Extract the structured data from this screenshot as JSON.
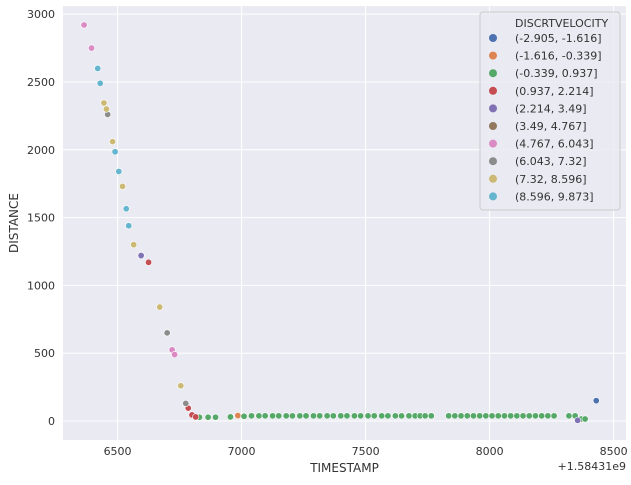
{
  "chart_data": {
    "type": "scatter",
    "xlabel": "TIMESTAMP",
    "ylabel": "DISTANCE",
    "x_offset_label": "+1.58431e9",
    "xlim": [
      6280,
      8550
    ],
    "ylim": [
      -140,
      3060
    ],
    "x_ticks": [
      6500,
      7000,
      7500,
      8000,
      8500
    ],
    "x_tick_labels": [
      "6500",
      "7000",
      "7500",
      "8000",
      "8500"
    ],
    "y_ticks": [
      0,
      500,
      1000,
      1500,
      2000,
      2500,
      3000
    ],
    "y_tick_labels": [
      "0",
      "500",
      "1000",
      "1500",
      "2000",
      "2500",
      "3000"
    ],
    "grid": true,
    "legend": {
      "title": "DISCRTVELOCITY",
      "placement": "top-right"
    },
    "series": [
      {
        "name": "(-2.905, -1.616]",
        "color": "#4c72b0",
        "points": [
          [
            8430,
            150
          ]
        ]
      },
      {
        "name": "(-1.616, -0.339]",
        "color": "#dd8452",
        "points": [
          [
            6985,
            40
          ]
        ]
      },
      {
        "name": "(-0.339, 0.937]",
        "color": "#55a868",
        "points": [
          [
            6830,
            28
          ],
          [
            6865,
            28
          ],
          [
            6895,
            28
          ],
          [
            6955,
            30
          ],
          [
            7010,
            35
          ],
          [
            7040,
            38
          ],
          [
            7070,
            38
          ],
          [
            7095,
            38
          ],
          [
            7125,
            38
          ],
          [
            7150,
            38
          ],
          [
            7180,
            38
          ],
          [
            7205,
            38
          ],
          [
            7235,
            38
          ],
          [
            7260,
            38
          ],
          [
            7290,
            38
          ],
          [
            7315,
            38
          ],
          [
            7345,
            38
          ],
          [
            7370,
            38
          ],
          [
            7400,
            38
          ],
          [
            7425,
            38
          ],
          [
            7455,
            38
          ],
          [
            7480,
            38
          ],
          [
            7510,
            38
          ],
          [
            7535,
            38
          ],
          [
            7565,
            38
          ],
          [
            7590,
            38
          ],
          [
            7620,
            38
          ],
          [
            7645,
            38
          ],
          [
            7675,
            38
          ],
          [
            7700,
            38
          ],
          [
            7720,
            38
          ],
          [
            7740,
            38
          ],
          [
            7765,
            38
          ],
          [
            7835,
            38
          ],
          [
            7860,
            38
          ],
          [
            7885,
            38
          ],
          [
            7910,
            38
          ],
          [
            7935,
            38
          ],
          [
            7960,
            38
          ],
          [
            7985,
            38
          ],
          [
            8010,
            38
          ],
          [
            8035,
            38
          ],
          [
            8060,
            38
          ],
          [
            8085,
            38
          ],
          [
            8110,
            38
          ],
          [
            8135,
            38
          ],
          [
            8160,
            38
          ],
          [
            8185,
            38
          ],
          [
            8210,
            38
          ],
          [
            8235,
            38
          ],
          [
            8260,
            38
          ],
          [
            8320,
            38
          ],
          [
            8345,
            38
          ],
          [
            8370,
            15
          ],
          [
            8385,
            15
          ]
        ]
      },
      {
        "name": "(0.937, 2.214]",
        "color": "#c44e52",
        "points": [
          [
            6625,
            1170
          ],
          [
            6785,
            95
          ],
          [
            6800,
            45
          ],
          [
            6815,
            30
          ]
        ]
      },
      {
        "name": "(2.214, 3.49]",
        "color": "#8172b3",
        "points": [
          [
            6595,
            1220
          ],
          [
            8355,
            5
          ]
        ]
      },
      {
        "name": "(3.49, 4.767]",
        "color": "#937860",
        "points": []
      },
      {
        "name": "(4.767, 6.043]",
        "color": "#da8bc3",
        "points": [
          [
            6365,
            2920
          ],
          [
            6395,
            2750
          ],
          [
            6720,
            525
          ],
          [
            6730,
            490
          ]
        ]
      },
      {
        "name": "(6.043, 7.32]",
        "color": "#8c8c8c",
        "points": [
          [
            6460,
            2260
          ],
          [
            6700,
            650
          ],
          [
            6775,
            130
          ]
        ]
      },
      {
        "name": "(7.32, 8.596]",
        "color": "#ccb974",
        "points": [
          [
            6445,
            2345
          ],
          [
            6455,
            2300
          ],
          [
            6480,
            2060
          ],
          [
            6520,
            1730
          ],
          [
            6565,
            1300
          ],
          [
            6670,
            840
          ],
          [
            6755,
            260
          ]
        ]
      },
      {
        "name": "(8.596, 9.873]",
        "color": "#64b5cd",
        "points": [
          [
            6420,
            2600
          ],
          [
            6430,
            2490
          ],
          [
            6490,
            1985
          ],
          [
            6505,
            1840
          ],
          [
            6535,
            1565
          ],
          [
            6545,
            1440
          ]
        ]
      }
    ]
  }
}
